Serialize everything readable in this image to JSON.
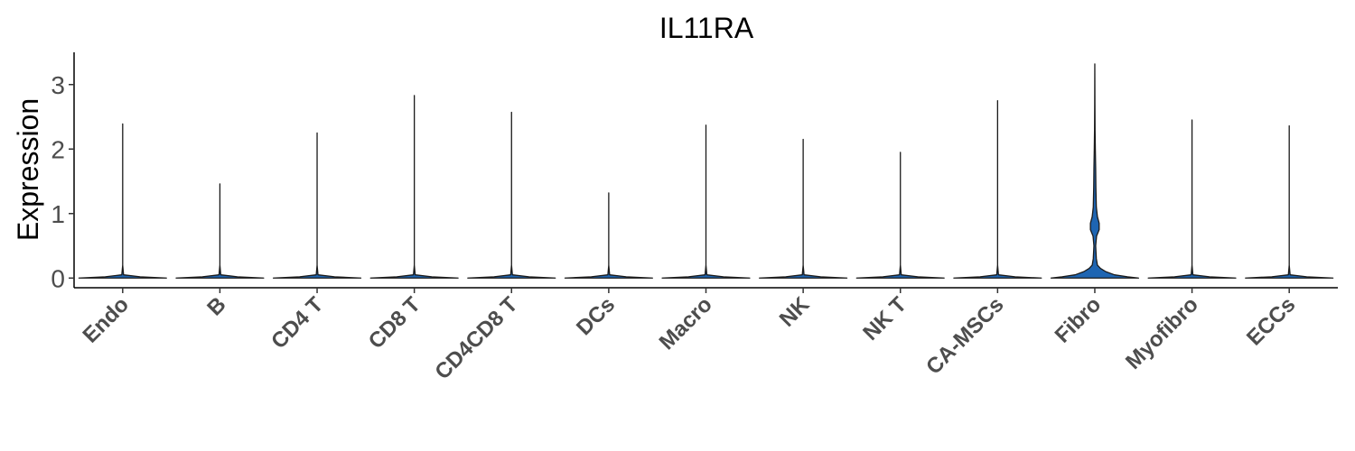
{
  "chart_data": {
    "type": "violin",
    "title": "IL11RA",
    "ylabel": "Expression",
    "xlabel": "",
    "ylim": [
      -0.15,
      3.5
    ],
    "yticks": [
      0,
      1,
      2,
      3
    ],
    "grid": false,
    "legend": "none",
    "fill_color": "#1E65B2",
    "categories": [
      "Endo",
      "B",
      "CD4 T",
      "CD8 T",
      "CD4CD8 T",
      "DCs",
      "Macro",
      "NK",
      "NK T",
      "CA-MSCs",
      "Fibro",
      "Myofibro",
      "ECCs"
    ],
    "max_values": [
      2.39,
      1.46,
      2.25,
      2.83,
      2.57,
      1.32,
      2.37,
      2.15,
      1.95,
      2.75,
      3.32,
      2.45,
      2.36
    ],
    "min_values": [
      0,
      0,
      0,
      0,
      0,
      0,
      0,
      0,
      0,
      0,
      0,
      0,
      0
    ],
    "density_profiles": [
      [
        [
          0,
          1
        ],
        [
          0.02,
          0.4
        ],
        [
          0.05,
          0.02
        ],
        [
          0.2,
          0
        ],
        [
          2.39,
          0
        ]
      ],
      [
        [
          0,
          1
        ],
        [
          0.02,
          0.4
        ],
        [
          0.05,
          0.02
        ],
        [
          0.2,
          0
        ],
        [
          1.46,
          0
        ]
      ],
      [
        [
          0,
          1
        ],
        [
          0.02,
          0.4
        ],
        [
          0.05,
          0.02
        ],
        [
          0.2,
          0
        ],
        [
          2.25,
          0
        ]
      ],
      [
        [
          0,
          1
        ],
        [
          0.02,
          0.4
        ],
        [
          0.05,
          0.02
        ],
        [
          0.2,
          0
        ],
        [
          2.83,
          0
        ]
      ],
      [
        [
          0,
          1
        ],
        [
          0.02,
          0.4
        ],
        [
          0.05,
          0.02
        ],
        [
          0.2,
          0
        ],
        [
          2.57,
          0
        ]
      ],
      [
        [
          0,
          1
        ],
        [
          0.02,
          0.4
        ],
        [
          0.05,
          0.02
        ],
        [
          0.2,
          0
        ],
        [
          1.32,
          0
        ]
      ],
      [
        [
          0,
          1
        ],
        [
          0.02,
          0.4
        ],
        [
          0.05,
          0.02
        ],
        [
          0.2,
          0
        ],
        [
          2.37,
          0
        ]
      ],
      [
        [
          0,
          1
        ],
        [
          0.02,
          0.4
        ],
        [
          0.05,
          0.02
        ],
        [
          0.2,
          0
        ],
        [
          2.15,
          0
        ]
      ],
      [
        [
          0,
          1
        ],
        [
          0.02,
          0.4
        ],
        [
          0.05,
          0.02
        ],
        [
          0.2,
          0
        ],
        [
          1.95,
          0
        ]
      ],
      [
        [
          0,
          1
        ],
        [
          0.02,
          0.4
        ],
        [
          0.05,
          0.02
        ],
        [
          0.2,
          0
        ],
        [
          2.75,
          0
        ]
      ],
      [
        [
          0,
          1
        ],
        [
          0.02,
          0.75
        ],
        [
          0.05,
          0.45
        ],
        [
          0.1,
          0.25
        ],
        [
          0.15,
          0.13
        ],
        [
          0.2,
          0.06
        ],
        [
          0.3,
          0.035
        ],
        [
          0.5,
          0.02
        ],
        [
          0.65,
          0.04
        ],
        [
          0.75,
          0.1
        ],
        [
          0.85,
          0.1
        ],
        [
          0.95,
          0.06
        ],
        [
          1.1,
          0.035
        ],
        [
          1.4,
          0.025
        ],
        [
          1.7,
          0.02
        ],
        [
          2.0,
          0.012
        ],
        [
          2.3,
          0.006
        ],
        [
          2.7,
          0.003
        ],
        [
          3.32,
          0
        ]
      ],
      [
        [
          0,
          1
        ],
        [
          0.02,
          0.4
        ],
        [
          0.05,
          0.02
        ],
        [
          0.2,
          0
        ],
        [
          2.45,
          0
        ]
      ],
      [
        [
          0,
          1
        ],
        [
          0.02,
          0.4
        ],
        [
          0.05,
          0.02
        ],
        [
          0.2,
          0
        ],
        [
          2.36,
          0
        ]
      ]
    ]
  }
}
